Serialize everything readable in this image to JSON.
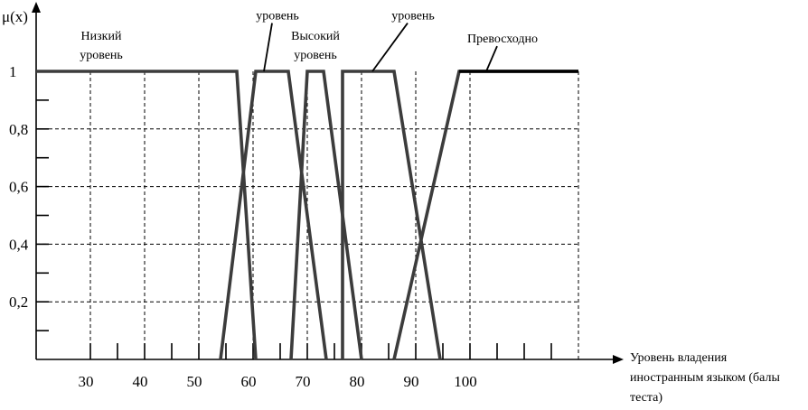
{
  "chart_data": {
    "type": "line",
    "title": "",
    "ylabel": "μ(x)",
    "xlabel_lines": [
      "Уровень владения",
      "иностранным языком (балы",
      "теста)"
    ],
    "xlim": [
      20,
      120
    ],
    "ylim": [
      0,
      1.0
    ],
    "x_ticks": [
      {
        "value": 30,
        "label": "30"
      },
      {
        "value": 40,
        "label": "40"
      },
      {
        "value": 50,
        "label": "50"
      },
      {
        "value": 60,
        "label": "60"
      },
      {
        "value": 70,
        "label": "70"
      },
      {
        "value": 80,
        "label": "80"
      },
      {
        "value": 90,
        "label": "90"
      },
      {
        "value": 100,
        "label": "100"
      }
    ],
    "x_minor_ticks": [
      35,
      45,
      55,
      65,
      75,
      85,
      95,
      105,
      110,
      115
    ],
    "y_ticks": [
      {
        "value": 1,
        "label": "1"
      },
      {
        "value": 0.8,
        "label": "0,8"
      },
      {
        "value": 0.6,
        "label": "0,6"
      },
      {
        "value": 0.4,
        "label": "0,4"
      },
      {
        "value": 0.2,
        "label": "0,2"
      }
    ],
    "y_minor_ticks": [
      0.1,
      0.3,
      0.5,
      0.7,
      0.9
    ],
    "grid_x": [
      30,
      40,
      50,
      60,
      70,
      80,
      90,
      100,
      120
    ],
    "grid_y": [
      0.2,
      0.4,
      0.6,
      0.8
    ],
    "grid": true,
    "series": [
      {
        "name": "Низкий уровень",
        "color": "#3c3c3c",
        "x": [
          20,
          57,
          60.5
        ],
        "y": [
          1,
          1,
          0
        ]
      },
      {
        "name": "",
        "color": "#3c3c3c",
        "x": [
          54,
          60.5,
          66.5,
          73.5
        ],
        "y": [
          0,
          1,
          1,
          0
        ]
      },
      {
        "name": "Высокий уровень",
        "color": "#3c3c3c",
        "x": [
          67,
          70,
          73,
          80
        ],
        "y": [
          0,
          1,
          1,
          0
        ]
      },
      {
        "name": "",
        "color": "#3c3c3c",
        "x": [
          76.5,
          76.5,
          86,
          94.5
        ],
        "y": [
          0,
          1,
          1,
          0
        ]
      },
      {
        "name": "Превосходно",
        "color": "#3c3c3c",
        "x": [
          86,
          98,
          120
        ],
        "y": [
          0,
          1,
          1
        ]
      }
    ],
    "top_line": {
      "color": "#000000",
      "x": [
        98,
        120
      ],
      "y": [
        1,
        1
      ]
    },
    "annotations": [
      {
        "lines": [
          "Низкий",
          "уровень"
        ],
        "anchor": "middle",
        "at": [
          32,
          1.11
        ],
        "leader_to": null
      },
      {
        "lines": [
          "уровень"
        ],
        "anchor": "middle",
        "at": [
          64.5,
          1.18
        ],
        "leader_to": [
          62,
          1
        ]
      },
      {
        "lines": [
          "Высокий",
          "уровень"
        ],
        "anchor": "middle",
        "at": [
          71.5,
          1.11
        ],
        "leader_to": null
      },
      {
        "lines": [
          "уровень"
        ],
        "anchor": "middle",
        "at": [
          89.5,
          1.18
        ],
        "leader_to": [
          82,
          1
        ]
      },
      {
        "lines": [
          "Превосходно"
        ],
        "anchor": "middle",
        "at": [
          106,
          1.1
        ],
        "leader_to": [
          103,
          1
        ]
      }
    ]
  }
}
